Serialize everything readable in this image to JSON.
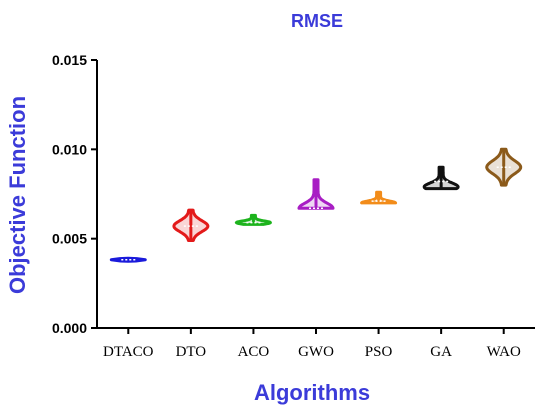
{
  "chart_data": {
    "type": "violin",
    "title": "RMSE",
    "xlabel": "Algorithms",
    "ylabel": "Objective Function",
    "ylim": [
      0.0,
      0.015
    ],
    "yticks": [
      "0.000",
      "0.005",
      "0.010",
      "0.015"
    ],
    "categories": [
      "DTACO",
      "DTO",
      "ACO",
      "GWO",
      "PSO",
      "GA",
      "WAO"
    ],
    "series": [
      {
        "name": "DTACO",
        "color": "#1a1adb",
        "min": 0.00378,
        "max": 0.00388,
        "median": 0.00382,
        "mode": 0.00382
      },
      {
        "name": "DTO",
        "color": "#e31a1a",
        "min": 0.0049,
        "max": 0.0066,
        "median": 0.0057,
        "mode": 0.0057
      },
      {
        "name": "ACO",
        "color": "#1db31d",
        "min": 0.0058,
        "max": 0.0063,
        "median": 0.0059,
        "mode": 0.0059
      },
      {
        "name": "GWO",
        "color": "#a81ec4",
        "min": 0.0067,
        "max": 0.0083,
        "median": 0.0067,
        "mode": 0.0067
      },
      {
        "name": "PSO",
        "color": "#f28c1a",
        "min": 0.007,
        "max": 0.0076,
        "median": 0.0071,
        "mode": 0.007
      },
      {
        "name": "GA",
        "color": "#111111",
        "min": 0.0078,
        "max": 0.009,
        "median": 0.0082,
        "mode": 0.0079
      },
      {
        "name": "WAO",
        "color": "#8b5a1a",
        "min": 0.008,
        "max": 0.01,
        "median": 0.009,
        "mode": 0.009
      }
    ],
    "title_color": "#3b3bd9",
    "label_color": "#3b3bd9",
    "grid": false,
    "legend": "none"
  }
}
